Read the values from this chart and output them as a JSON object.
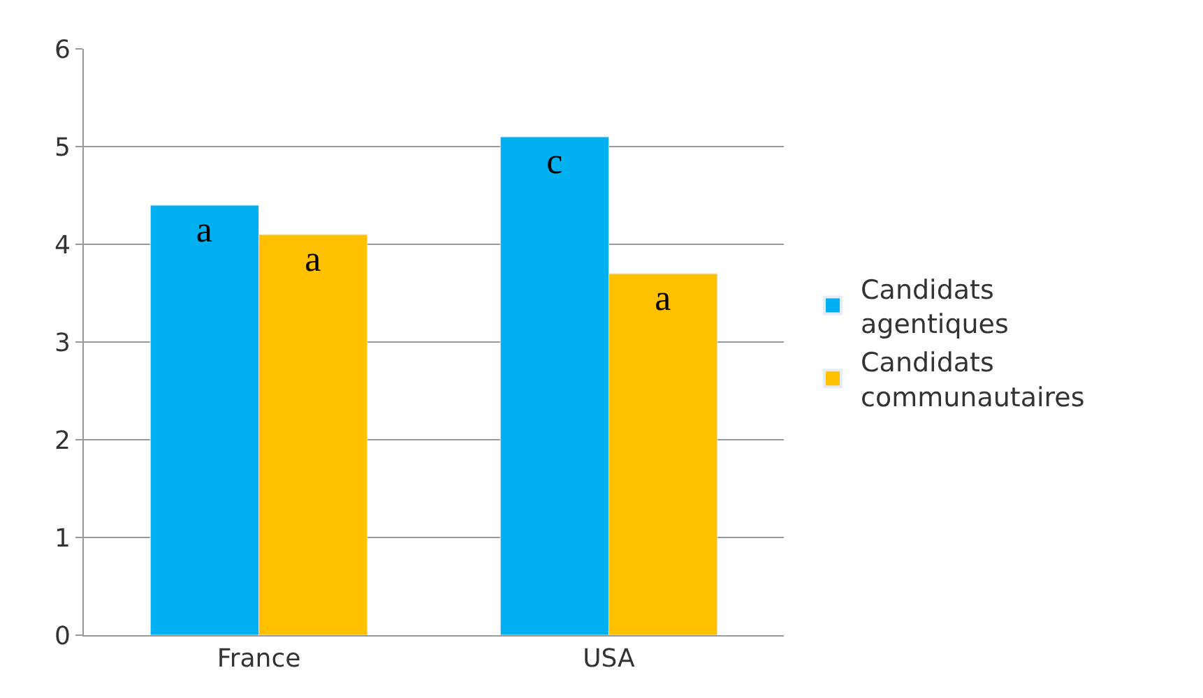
{
  "chart_data": {
    "type": "bar",
    "categories": [
      "France",
      "USA"
    ],
    "series": [
      {
        "name": "Candidats agentiques",
        "color": "#00b0f0",
        "values": [
          4.4,
          5.1
        ],
        "value_labels": [
          "a",
          "c"
        ]
      },
      {
        "name": "Candidats communautaires",
        "color": "#ffc000",
        "values": [
          4.1,
          3.7
        ],
        "value_labels": [
          "a",
          "a"
        ]
      }
    ],
    "ylim": [
      0,
      6
    ],
    "yticks": [
      0,
      1,
      2,
      3,
      4,
      5,
      6
    ],
    "grid": "y",
    "legend": "right"
  }
}
